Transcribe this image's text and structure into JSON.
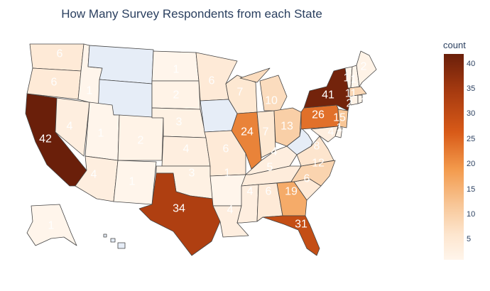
{
  "title": "How Many Survey Respondents from each State",
  "colorbar": {
    "title": "count",
    "min": 1,
    "max": 42,
    "ticks": [
      "40",
      "35",
      "30",
      "25",
      "20",
      "15",
      "10",
      "5"
    ],
    "colors": [
      "#fff5eb",
      "#fde6cf",
      "#f8c89a",
      "#f39a4c",
      "#d85a18",
      "#a63a10",
      "#6a1f0a"
    ]
  },
  "states": {
    "WA": 6,
    "OR": 6,
    "CA": 42,
    "NV": 4,
    "ID": 1,
    "UT": 1,
    "AZ": 4,
    "CO": 2,
    "NM": 1,
    "ND": 1,
    "SD": 2,
    "NE": 3,
    "KS": 4,
    "OK": 3,
    "TX": 34,
    "MN": 6,
    "WI": 7,
    "MI": 10,
    "IL": 24,
    "IN": 7,
    "OH": 13,
    "MO": 6,
    "AR": 1,
    "LA": 4,
    "KY": 4,
    "TN": 5,
    "MS": 4,
    "AL": 6,
    "GA": 19,
    "FL": 31,
    "SC": 6,
    "NC": 12,
    "VA": 8,
    "PA": 26,
    "NY": 41,
    "NJ": 15,
    "MD": 4,
    "DE": 1,
    "VT": 1,
    "NH": 1,
    "MA": 11,
    "CT": 2,
    "RI": 1,
    "ME": 2,
    "AK": 1,
    "MT": null,
    "WY": null,
    "IA": null,
    "WV": null,
    "HI": null
  }
}
